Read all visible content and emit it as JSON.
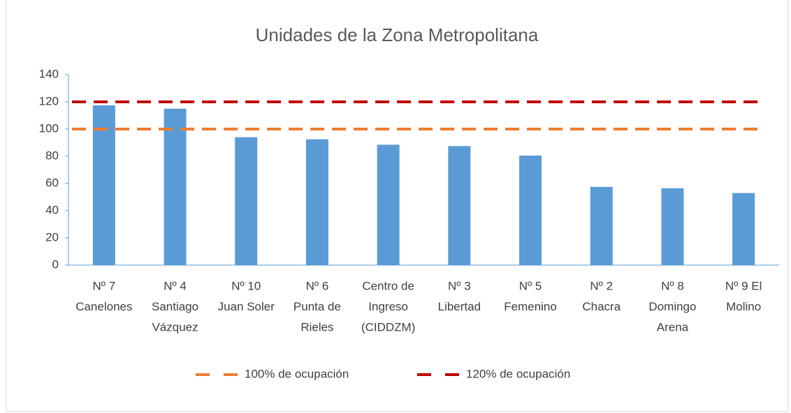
{
  "chart_data": {
    "type": "bar",
    "title": "Unidades de la Zona Metropolitana",
    "categories": [
      [
        "Nº 7",
        "Canelones"
      ],
      [
        "Nº 4",
        "Santiago",
        "Vázquez"
      ],
      [
        "Nº 10",
        "Juan Soler"
      ],
      [
        "Nº 6",
        "Punta de",
        "Rieles"
      ],
      [
        "Centro de",
        "Ingreso",
        "(CIDDZM)"
      ],
      [
        "Nº 3",
        "Libertad"
      ],
      [
        "Nº 5",
        "Femenino"
      ],
      [
        "Nº 2",
        "Chacra"
      ],
      [
        "Nº 8",
        "Domingo",
        "Arena"
      ],
      [
        "Nº 9 El",
        "Molino"
      ]
    ],
    "values": [
      117.5,
      115,
      94,
      92.5,
      88.5,
      87.5,
      80.5,
      57.5,
      56.5,
      53
    ],
    "color": "#5b9bd5",
    "lines": [
      {
        "name": "100% de ocupación",
        "color": "#ed7d31",
        "values": [
          100,
          100,
          100,
          100,
          100,
          100,
          100,
          100,
          100,
          100
        ]
      },
      {
        "name": "120% de ocupación",
        "color": "#c00000",
        "values": [
          120,
          120,
          120,
          120,
          120,
          120,
          120,
          120,
          120,
          120
        ]
      }
    ],
    "ylim": [
      0,
      140
    ],
    "yticks": [
      0,
      20,
      40,
      60,
      80,
      100,
      120,
      140
    ],
    "grid": false,
    "legend": "bottom"
  }
}
